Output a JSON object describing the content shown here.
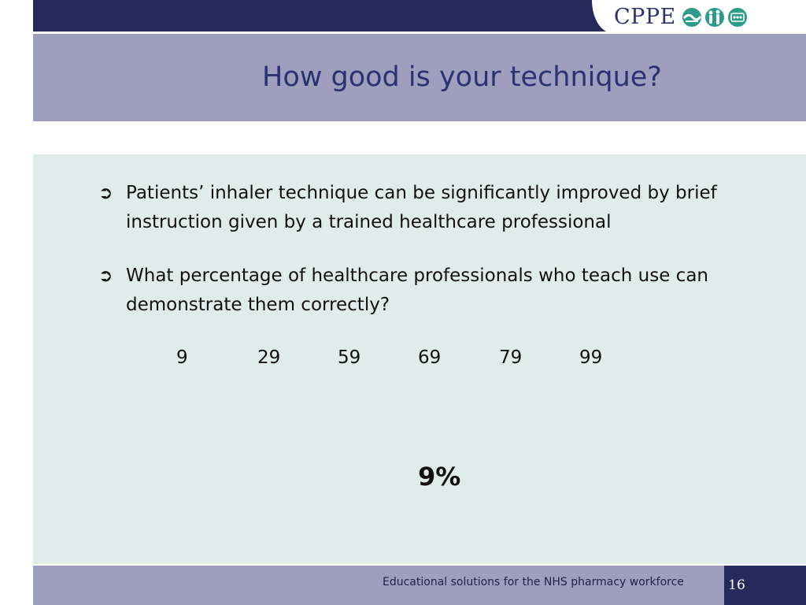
{
  "header": {
    "logo_text": "CPPE",
    "logo_icons": [
      "handshake-logo-icon",
      "people-logo-icon",
      "pills-logo-icon"
    ],
    "brand_color": "#262a5b"
  },
  "slide": {
    "title": "How good is your technique?",
    "bullets": [
      {
        "marker": "➲",
        "text": "Patients’ inhaler technique can be significantly improved by brief instruction given by a trained healthcare professional"
      },
      {
        "marker": "➲",
        "text": "What percentage of healthcare professionals who teach use can demonstrate them correctly?"
      }
    ],
    "options": [
      "9",
      "29",
      "59",
      "69",
      "79",
      "99"
    ],
    "answer": "9%"
  },
  "footer": {
    "tagline": "Educational solutions for the NHS pharmacy workforce",
    "page_number": "16"
  },
  "colors": {
    "band": "#9e9fbe",
    "content_panel": "#e0ece9",
    "title_text": "#2b3270"
  }
}
